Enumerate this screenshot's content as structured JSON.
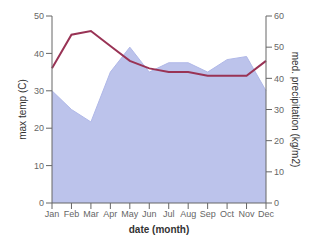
{
  "chart_data": {
    "type": "line",
    "categories": [
      "Jan",
      "Feb",
      "Mar",
      "Apr",
      "May",
      "Jun",
      "Jul",
      "Aug",
      "Sep",
      "Oct",
      "Nov",
      "Dec"
    ],
    "series": [
      {
        "type": "area",
        "axis": "y2",
        "color": "#b0b8e8",
        "values": [
          36,
          30,
          26,
          42,
          50,
          42,
          45,
          45,
          42,
          46,
          47,
          36
        ]
      },
      {
        "type": "line",
        "color": "#993355",
        "values": [
          36,
          45,
          46,
          42,
          38,
          36,
          35,
          35,
          34,
          34,
          34,
          38
        ]
      }
    ],
    "xlabel": "date (month)",
    "ylabel": "max temp (C)",
    "y2label": "med. precipitation (kg/m2)",
    "ylim": [
      0,
      50
    ],
    "yticks": [
      0,
      10,
      20,
      30,
      40,
      50
    ],
    "y2lim": [
      0,
      60
    ],
    "y2ticks": [
      0,
      10,
      20,
      30,
      40,
      50,
      60
    ],
    "grid": false
  }
}
